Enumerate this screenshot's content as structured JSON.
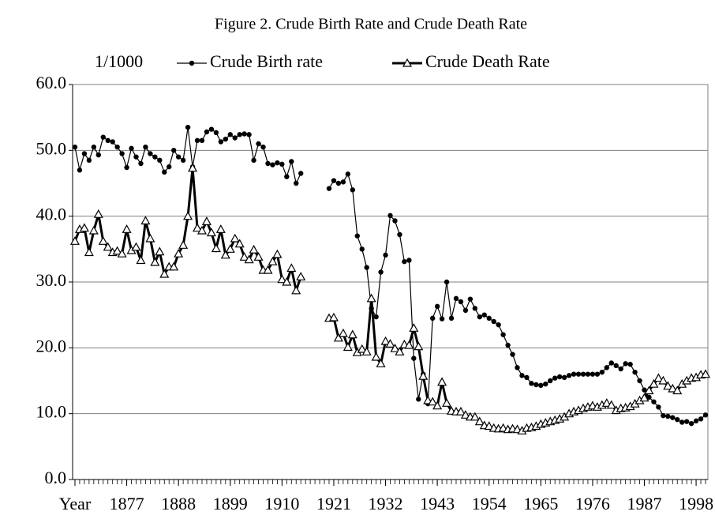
{
  "chart_data": {
    "type": "line",
    "title": "Figure 2. Crude Birth Rate and Crude Death Rate",
    "ylabel": "1/1000",
    "x": [
      1866,
      1867,
      1868,
      1869,
      1870,
      1871,
      1872,
      1873,
      1874,
      1875,
      1876,
      1877,
      1878,
      1879,
      1880,
      1881,
      1882,
      1883,
      1884,
      1885,
      1886,
      1887,
      1888,
      1889,
      1890,
      1891,
      1892,
      1893,
      1894,
      1895,
      1896,
      1897,
      1898,
      1899,
      1900,
      1901,
      1902,
      1903,
      1904,
      1905,
      1906,
      1907,
      1908,
      1909,
      1910,
      1911,
      1912,
      1913,
      1914,
      1915,
      1916,
      1917,
      1918,
      1919,
      1920,
      1921,
      1922,
      1923,
      1924,
      1925,
      1926,
      1927,
      1928,
      1929,
      1930,
      1931,
      1932,
      1933,
      1934,
      1935,
      1936,
      1937,
      1938,
      1939,
      1940,
      1941,
      1942,
      1943,
      1944,
      1945,
      1946,
      1947,
      1948,
      1949,
      1950,
      1951,
      1952,
      1953,
      1954,
      1955,
      1956,
      1957,
      1958,
      1959,
      1960,
      1961,
      1962,
      1963,
      1964,
      1965,
      1966,
      1967,
      1968,
      1969,
      1970,
      1971,
      1972,
      1973,
      1974,
      1975,
      1976,
      1977,
      1978,
      1979,
      1980,
      1981,
      1982,
      1983,
      1984,
      1985,
      1986,
      1987,
      1988,
      1989,
      1990,
      1991,
      1992,
      1993,
      1994,
      1995,
      1996,
      1997,
      1998,
      1999,
      2000
    ],
    "xlim": [
      1865.5,
      2000.5
    ],
    "xticks": [
      {
        "value": 1866,
        "label": "Year"
      },
      1877,
      1888,
      1899,
      1910,
      1921,
      1932,
      1943,
      1954,
      1965,
      1976,
      1987,
      1998
    ],
    "ylim": [
      0,
      60
    ],
    "yticks": [
      {
        "value": 0,
        "label": "0.0"
      },
      {
        "value": 10,
        "label": "10.0"
      },
      {
        "value": 20,
        "label": "20.0"
      },
      {
        "value": 30,
        "label": "30.0"
      },
      {
        "value": 40,
        "label": "40.0"
      },
      {
        "value": 50,
        "label": "50.0"
      },
      {
        "value": 60,
        "label": "60.0"
      }
    ],
    "grid": true,
    "legend": "top",
    "series": [
      {
        "name": "Crude Birth rate",
        "color": "#000000",
        "marker": "circle",
        "values": [
          50.5,
          47.0,
          49.5,
          48.5,
          50.5,
          49.3,
          52.0,
          51.5,
          51.3,
          50.5,
          49.5,
          47.4,
          50.3,
          49.0,
          48.0,
          50.5,
          49.5,
          49.0,
          48.5,
          46.7,
          47.5,
          50.0,
          49.0,
          48.5,
          53.5,
          47.5,
          51.5,
          51.5,
          52.8,
          53.2,
          52.7,
          51.3,
          51.7,
          52.4,
          51.9,
          52.4,
          52.5,
          52.4,
          48.5,
          51.0,
          50.5,
          48.0,
          47.8,
          48.1,
          47.9,
          46.0,
          48.3,
          45.0,
          46.5,
          null,
          null,
          null,
          null,
          null,
          44.2,
          45.4,
          45.0,
          45.2,
          46.4,
          44.0,
          37.0,
          35.0,
          32.2,
          26.0,
          24.7,
          31.5,
          34.1,
          40.1,
          39.3,
          37.2,
          33.1,
          33.3,
          18.4,
          12.2,
          16.0,
          11.5,
          24.5,
          26.3,
          24.4,
          30.0,
          24.5,
          27.5,
          27.0,
          25.7,
          27.4,
          26.0,
          24.7,
          25.0,
          24.5,
          24.0,
          23.5,
          22.0,
          20.4,
          19.0,
          17.0,
          15.8,
          15.5,
          14.6,
          14.4,
          14.3,
          14.5,
          15.0,
          15.4,
          15.6,
          15.5,
          15.8,
          16.0,
          16.0,
          16.0,
          16.0,
          16.0,
          16.0,
          16.3,
          17.0,
          17.7,
          17.3,
          16.8,
          17.6,
          17.5,
          16.3,
          15.0,
          13.6,
          12.5,
          11.8,
          11.0,
          9.7,
          9.6,
          9.4,
          9.1,
          8.7,
          8.8,
          8.5,
          8.9,
          9.2,
          9.8
        ]
      },
      {
        "name": "Crude Death Rate",
        "color": "#000000",
        "marker": "triangle",
        "values": [
          36.2,
          38.0,
          38.2,
          34.5,
          37.8,
          40.3,
          36.2,
          35.3,
          34.5,
          34.7,
          34.3,
          38.0,
          34.8,
          35.3,
          33.3,
          39.3,
          36.6,
          33.0,
          34.6,
          31.2,
          32.3,
          32.3,
          34.3,
          35.6,
          40.0,
          47.3,
          38.2,
          37.8,
          39.2,
          37.5,
          35.1,
          38.0,
          34.1,
          35.0,
          36.6,
          35.8,
          33.8,
          33.4,
          34.9,
          33.8,
          31.8,
          31.8,
          33.1,
          34.2,
          30.4,
          30.0,
          32.1,
          28.7,
          30.8,
          null,
          null,
          null,
          null,
          null,
          24.5,
          24.6,
          21.5,
          22.2,
          20.1,
          22.0,
          19.3,
          19.8,
          19.4,
          27.5,
          18.6,
          17.6,
          21.0,
          20.6,
          19.9,
          19.4,
          20.5,
          20.4,
          23.0,
          20.2,
          15.7,
          12.0,
          11.8,
          11.2,
          14.8,
          11.6,
          10.4,
          10.3,
          10.3,
          9.8,
          9.5,
          9.5,
          8.8,
          8.2,
          8.1,
          7.8,
          7.7,
          7.8,
          7.6,
          7.7,
          7.6,
          7.4,
          7.8,
          7.9,
          8.1,
          8.4,
          8.6,
          8.8,
          9.0,
          9.2,
          9.5,
          10.0,
          10.3,
          10.5,
          10.8,
          11.0,
          11.2,
          11.0,
          11.3,
          11.6,
          11.3,
          10.5,
          10.8,
          10.9,
          11.1,
          11.5,
          12.0,
          12.4,
          13.5,
          14.5,
          15.4,
          15.0,
          14.2,
          13.8,
          13.5,
          14.5,
          15.0,
          15.4,
          15.5,
          15.9,
          16.0
        ]
      }
    ]
  }
}
